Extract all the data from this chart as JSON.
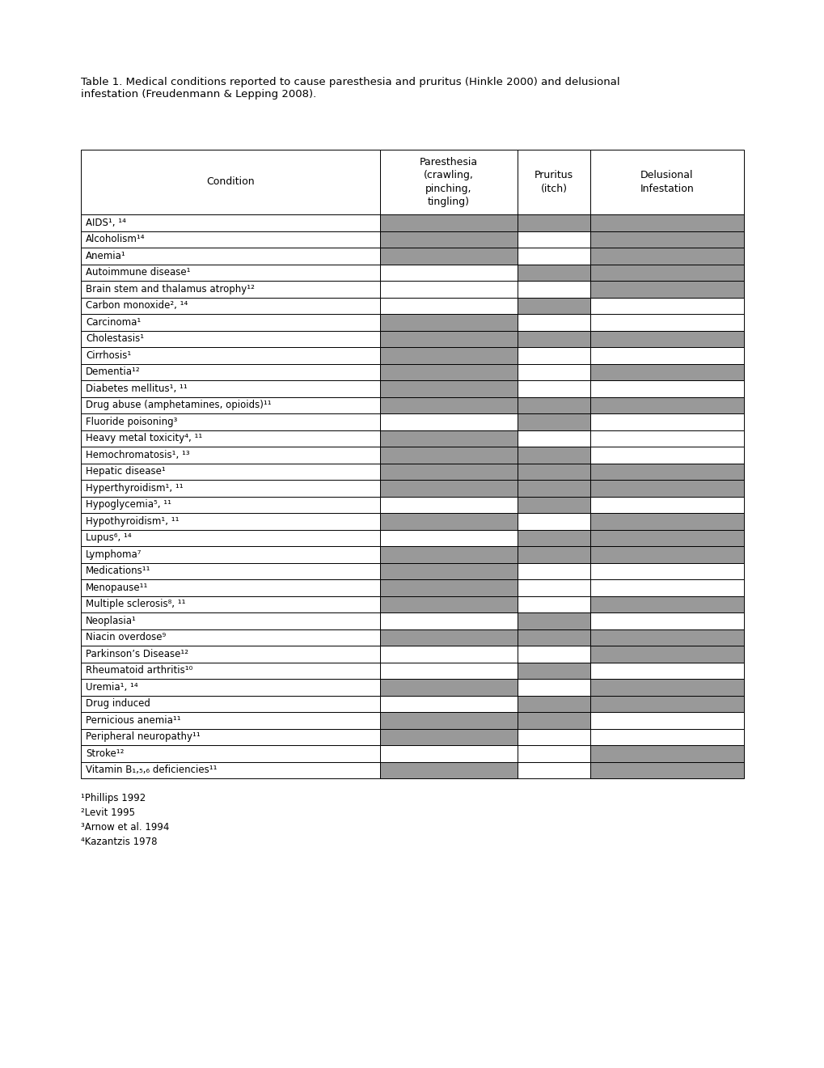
{
  "title": "Table 1. Medical conditions reported to cause paresthesia and pruritus (Hinkle 2000) and delusional\ninfestation (Freudenmann & Lepping 2008).",
  "rows": [
    {
      "condition": "AIDS¹, ¹⁴",
      "par": 1,
      "pru": 1,
      "del": 1
    },
    {
      "condition": "Alcoholism¹⁴",
      "par": 1,
      "pru": 0,
      "del": 1
    },
    {
      "condition": "Anemia¹",
      "par": 1,
      "pru": 0,
      "del": 1
    },
    {
      "condition": "Autoimmune disease¹",
      "par": 0,
      "pru": 1,
      "del": 1
    },
    {
      "condition": "Brain stem and thalamus atrophy¹²",
      "par": 0,
      "pru": 0,
      "del": 1
    },
    {
      "condition": "Carbon monoxide², ¹⁴",
      "par": 0,
      "pru": 1,
      "del": 0
    },
    {
      "condition": "Carcinoma¹",
      "par": 1,
      "pru": 0,
      "del": 0
    },
    {
      "condition": "Cholestasis¹",
      "par": 1,
      "pru": 1,
      "del": 1
    },
    {
      "condition": "Cirrhosis¹",
      "par": 1,
      "pru": 0,
      "del": 0
    },
    {
      "condition": "Dementia¹²",
      "par": 1,
      "pru": 0,
      "del": 1
    },
    {
      "condition": "Diabetes mellitus¹, ¹¹",
      "par": 1,
      "pru": 0,
      "del": 0
    },
    {
      "condition": "Drug abuse (amphetamines, opioids)¹¹",
      "par": 1,
      "pru": 1,
      "del": 1
    },
    {
      "condition": "Fluoride poisoning³",
      "par": 0,
      "pru": 1,
      "del": 0
    },
    {
      "condition": "Heavy metal toxicity⁴, ¹¹",
      "par": 1,
      "pru": 0,
      "del": 0
    },
    {
      "condition": "Hemochromatosis¹, ¹³",
      "par": 1,
      "pru": 1,
      "del": 0
    },
    {
      "condition": "Hepatic disease¹",
      "par": 1,
      "pru": 1,
      "del": 1
    },
    {
      "condition": "Hyperthyroidism¹, ¹¹",
      "par": 1,
      "pru": 1,
      "del": 1
    },
    {
      "condition": "Hypoglycemia⁵, ¹¹",
      "par": 0,
      "pru": 1,
      "del": 0
    },
    {
      "condition": "Hypothyroidism¹, ¹¹",
      "par": 1,
      "pru": 0,
      "del": 1
    },
    {
      "condition": "Lupus⁶, ¹⁴",
      "par": 0,
      "pru": 1,
      "del": 1
    },
    {
      "condition": "Lymphoma⁷",
      "par": 1,
      "pru": 1,
      "del": 1
    },
    {
      "condition": "Medications¹¹",
      "par": 1,
      "pru": 0,
      "del": 0
    },
    {
      "condition": "Menopause¹¹",
      "par": 1,
      "pru": 0,
      "del": 0
    },
    {
      "condition": "Multiple sclerosis⁸, ¹¹",
      "par": 1,
      "pru": 0,
      "del": 1
    },
    {
      "condition": "Neoplasia¹",
      "par": 0,
      "pru": 1,
      "del": 0
    },
    {
      "condition": "Niacin overdose⁹",
      "par": 1,
      "pru": 1,
      "del": 1
    },
    {
      "condition": "Parkinson’s Disease¹²",
      "par": 0,
      "pru": 0,
      "del": 1
    },
    {
      "condition": "Rheumatoid arthritis¹⁰",
      "par": 0,
      "pru": 1,
      "del": 0
    },
    {
      "condition": "Uremia¹, ¹⁴",
      "par": 1,
      "pru": 0,
      "del": 1
    },
    {
      "condition": "Drug induced",
      "par": 0,
      "pru": 1,
      "del": 1
    },
    {
      "condition": "Pernicious anemia¹¹",
      "par": 1,
      "pru": 1,
      "del": 0
    },
    {
      "condition": "Peripheral neuropathy¹¹",
      "par": 1,
      "pru": 0,
      "del": 0
    },
    {
      "condition": "Stroke¹²",
      "par": 0,
      "pru": 0,
      "del": 1
    },
    {
      "condition": "Vitamin B₁,₅,₆ deficiencies¹¹",
      "par": 1,
      "pru": 0,
      "del": 1
    }
  ],
  "footnotes": [
    "¹Phillips 1992",
    "²Levit 1995",
    "³Arnow et al. 1994",
    "⁴Kazantzis 1978"
  ],
  "gray_color": "#999999",
  "white_color": "#ffffff",
  "bg_color": "#ffffff",
  "title_fontsize": 9.5,
  "header_fontsize": 9,
  "row_fontsize": 8.5,
  "footnote_fontsize": 8.5
}
